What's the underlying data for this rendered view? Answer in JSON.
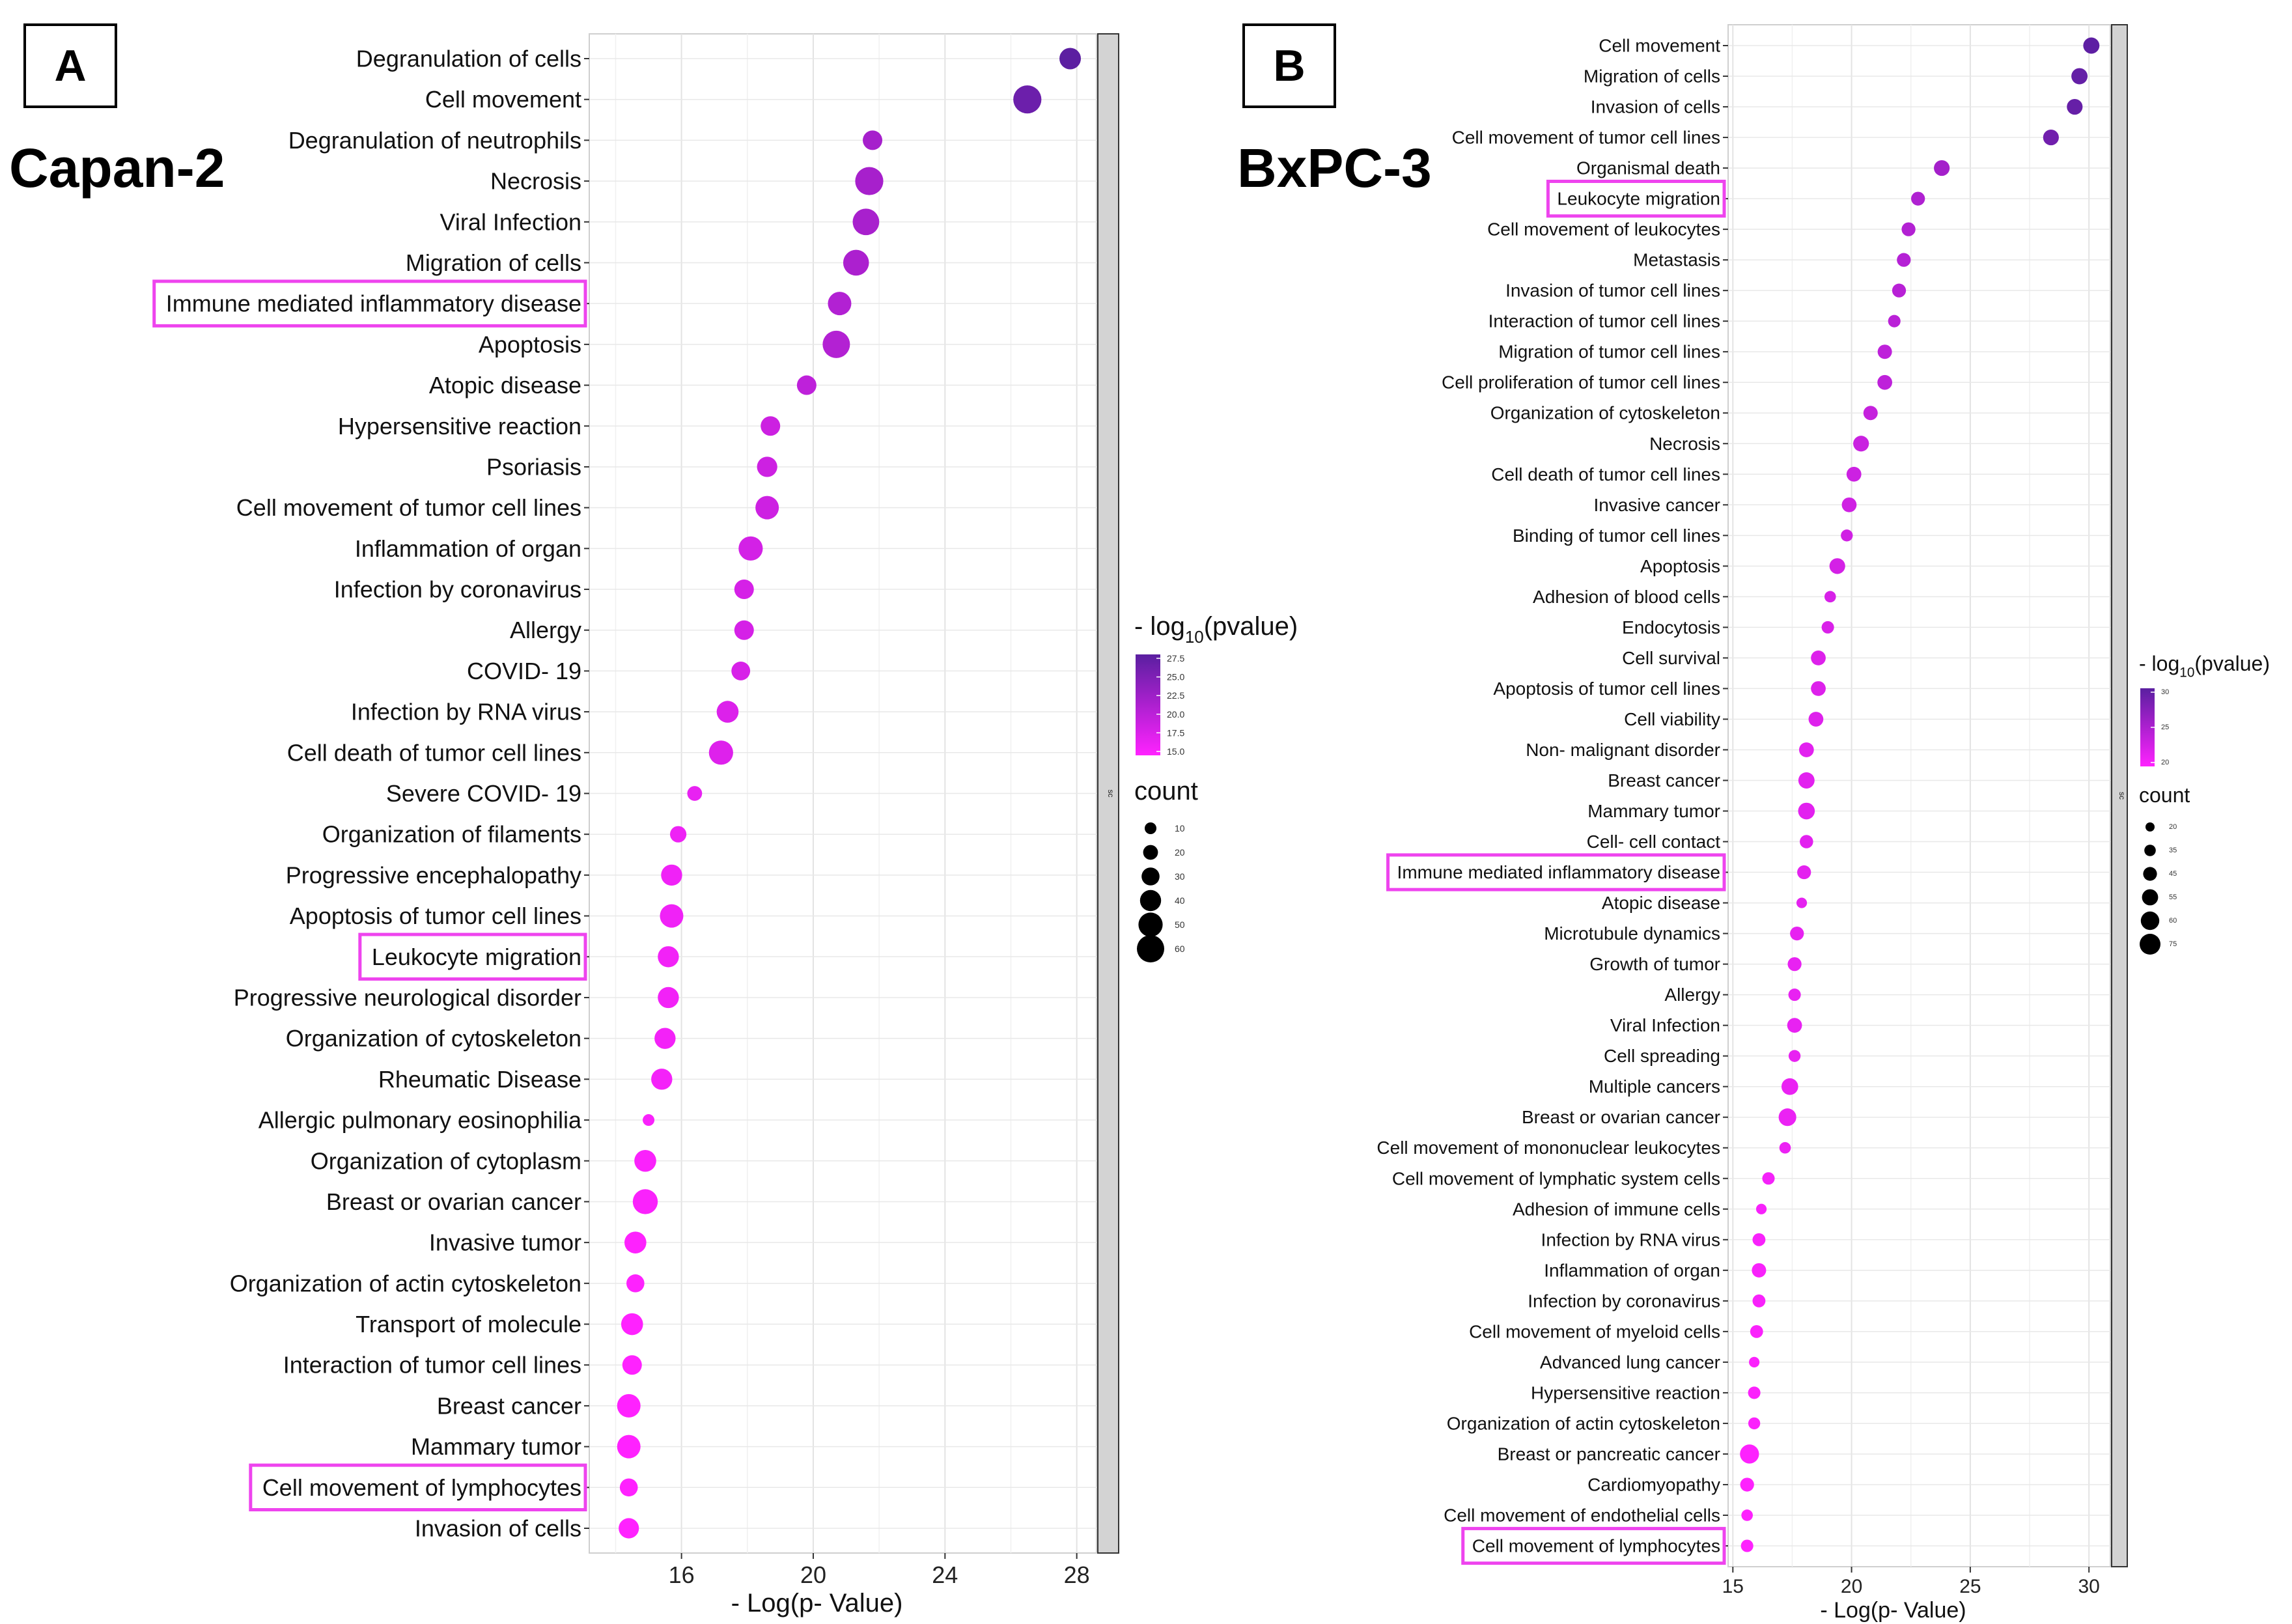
{
  "panels": [
    {
      "letter": "A",
      "cell_line": "Capan-2"
    },
    {
      "letter": "B",
      "cell_line": "BxPC-3"
    }
  ],
  "highlight_color": "#ee44ee",
  "color_low": "#ff22ff",
  "color_high": "#5a1fa0",
  "chart_data": [
    {
      "type": "scatter",
      "panel": "A",
      "xlabel": "- Log(p- Value)",
      "ylabel": "",
      "xlim": [
        13.2,
        28.6
      ],
      "xticks": [
        16,
        20,
        24,
        28
      ],
      "grid": true,
      "strip_label": "sc",
      "legend_placement": "right",
      "color_legend_title": "- log10(pvalue)",
      "color_ticks": [
        "27.5",
        "25.0",
        "22.5",
        "20.0",
        "17.5",
        "15.0"
      ],
      "color_range": [
        14.5,
        28.0
      ],
      "size_legend_title": "count",
      "size_ticks": [
        "10",
        "20",
        "30",
        "40",
        "50",
        "60"
      ],
      "size_range": [
        10,
        60
      ],
      "categories": [
        "Degranulation of cells",
        "Cell movement",
        "Degranulation of neutrophils",
        "Necrosis",
        "Viral Infection",
        "Migration of cells",
        "Immune mediated inflammatory disease",
        "Apoptosis",
        "Atopic disease",
        "Hypersensitive reaction",
        "Psoriasis",
        "Cell movement of tumor cell lines",
        "Inflammation of organ",
        "Infection by coronavirus",
        "Allergy",
        "COVID- 19",
        "Infection by RNA virus",
        "Cell death of tumor cell lines",
        "Severe COVID- 19",
        "Organization of filaments",
        "Progressive encephalopathy",
        "Apoptosis of tumor cell lines",
        "Leukocyte migration",
        "Progressive neurological disorder",
        "Organization of cytoskeleton",
        "Rheumatic Disease",
        "Allergic pulmonary eosinophilia",
        "Organization of cytoplasm",
        "Breast or ovarian cancer",
        "Invasive tumor",
        "Organization of actin cytoskeleton",
        "Transport of molecule",
        "Interaction of tumor cell lines",
        "Breast cancer",
        "Mammary tumor",
        "Cell movement of lymphocytes",
        "Invasion of cells"
      ],
      "x": [
        27.8,
        26.5,
        21.8,
        21.7,
        21.6,
        21.3,
        20.8,
        20.7,
        19.8,
        18.7,
        18.6,
        18.6,
        18.1,
        17.9,
        17.9,
        17.8,
        17.4,
        17.2,
        16.4,
        15.9,
        15.7,
        15.7,
        15.6,
        15.6,
        15.5,
        15.4,
        15.0,
        14.9,
        14.9,
        14.6,
        14.6,
        14.5,
        14.5,
        14.4,
        14.4,
        14.4,
        14.4
      ],
      "count": [
        35,
        52,
        30,
        52,
        48,
        46,
        40,
        50,
        30,
        30,
        32,
        40,
        42,
        30,
        30,
        28,
        36,
        42,
        18,
        22,
        34,
        40,
        34,
        34,
        34,
        34,
        10,
        36,
        44,
        36,
        26,
        36,
        30,
        40,
        40,
        26,
        32
      ],
      "highlighted": [
        "Immune mediated inflammatory disease",
        "Leukocyte migration",
        "Cell movement of lymphocytes"
      ]
    },
    {
      "type": "scatter",
      "panel": "B",
      "xlabel": "- Log(p- Value)",
      "ylabel": "",
      "xlim": [
        14.8,
        30.9
      ],
      "xticks": [
        15,
        20,
        25,
        30
      ],
      "grid": true,
      "strip_label": "sc",
      "legend_placement": "right",
      "color_legend_title": "- log10(pvalue)",
      "color_ticks": [
        "30",
        "25",
        "20"
      ],
      "color_range": [
        15.5,
        30.5
      ],
      "size_legend_title": "count",
      "size_ticks": [
        "20",
        "35",
        "45",
        "55",
        "60",
        "75"
      ],
      "size_range": [
        20,
        75
      ],
      "categories": [
        "Cell movement",
        "Migration of cells",
        "Invasion of cells",
        "Cell movement of tumor cell lines",
        "Organismal death",
        "Leukocyte migration",
        "Cell movement of leukocytes",
        "Metastasis",
        "Invasion of tumor cell lines",
        "Interaction of tumor cell lines",
        "Migration of tumor cell lines",
        "Cell proliferation of tumor cell lines",
        "Organization of cytoskeleton",
        "Necrosis",
        "Cell death of tumor cell lines",
        "Invasive cancer",
        "Binding of tumor cell lines",
        "Apoptosis",
        "Adhesion of blood cells",
        "Endocytosis",
        "Cell survival",
        "Apoptosis of tumor cell lines",
        "Cell viability",
        "Non- malignant disorder",
        "Breast cancer",
        "Mammary tumor",
        "Cell- cell contact",
        "Immune mediated inflammatory disease",
        "Atopic disease",
        "Microtubule dynamics",
        "Growth of tumor",
        "Allergy",
        "Viral Infection",
        "Cell spreading",
        "Multiple cancers",
        "Breast or ovarian cancer",
        "Cell movement of mononuclear leukocytes",
        "Cell movement of lymphatic system cells",
        "Adhesion of immune cells",
        "Infection by RNA virus",
        "Inflammation of organ",
        "Infection by coronavirus",
        "Cell movement of myeloid cells",
        "Advanced lung cancer",
        "Hypersensitive reaction",
        "Organization of actin cytoskeleton",
        "Breast or pancreatic cancer",
        "Cardiomyopathy",
        "Cell movement of endothelial cells",
        "Cell movement of lymphocytes"
      ],
      "x": [
        30.1,
        29.6,
        29.4,
        28.4,
        23.8,
        22.8,
        22.4,
        22.2,
        22.0,
        21.8,
        21.4,
        21.4,
        20.8,
        20.4,
        20.1,
        19.9,
        19.8,
        19.4,
        19.1,
        19.0,
        18.6,
        18.6,
        18.5,
        18.1,
        18.1,
        18.1,
        18.1,
        18.0,
        17.9,
        17.7,
        17.6,
        17.6,
        17.6,
        17.6,
        17.4,
        17.3,
        17.2,
        16.5,
        16.2,
        16.1,
        16.1,
        16.1,
        16.0,
        15.9,
        15.9,
        15.9,
        15.7,
        15.6,
        15.6,
        15.6
      ],
      "count": [
        50,
        50,
        48,
        48,
        48,
        40,
        40,
        40,
        40,
        34,
        42,
        44,
        42,
        48,
        44,
        44,
        32,
        48,
        30,
        34,
        44,
        44,
        44,
        44,
        50,
        52,
        38,
        40,
        26,
        40,
        40,
        34,
        44,
        32,
        52,
        56,
        30,
        34,
        26,
        36,
        42,
        36,
        36,
        26,
        34,
        32,
        62,
        40,
        30,
        34
      ],
      "highlighted": [
        "Leukocyte migration",
        "Immune mediated inflammatory disease",
        "Cell movement of lymphocytes"
      ]
    }
  ]
}
